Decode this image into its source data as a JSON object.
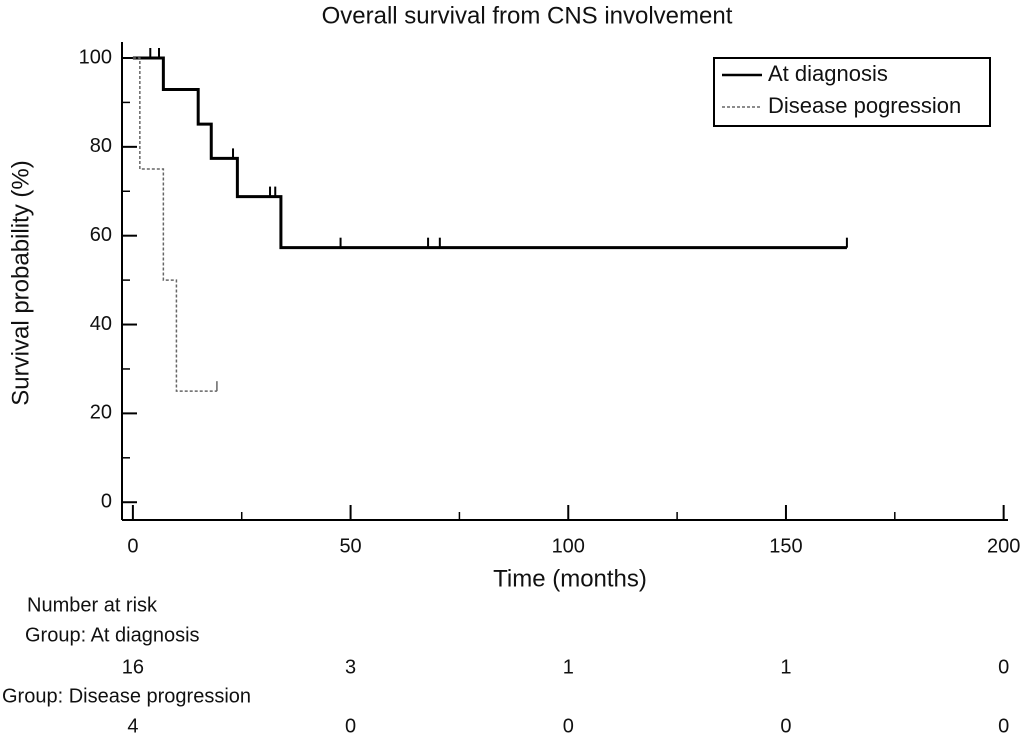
{
  "chart_data": {
    "type": "km",
    "title": "Overall survival from CNS involvement",
    "xlabel": "Time (months)",
    "ylabel": "Survival probability (%)",
    "xlim": [
      -2.5,
      201
    ],
    "ylim": [
      -4,
      103.6
    ],
    "xticks": [
      0,
      50,
      100,
      150,
      200
    ],
    "xminorticks": [
      25,
      75,
      125,
      175
    ],
    "yticks": [
      0,
      20,
      40,
      60,
      80,
      100
    ],
    "yminorticks": [
      10,
      30,
      50,
      70,
      90
    ],
    "legend": "top-right",
    "series": [
      {
        "name": "At diagnosis",
        "color": "#000000",
        "dashed": false,
        "x": [
          0,
          7,
          15,
          18,
          24,
          34
        ],
        "values": [
          100,
          92.9,
          85.1,
          77.4,
          68.8,
          57.3
        ],
        "censored": [
          4,
          6,
          23,
          31.5,
          32.7,
          47.7,
          67.8,
          70.5,
          164
        ]
      },
      {
        "name": "Disease pogression",
        "color": "#666666",
        "dashed": true,
        "x": [
          0,
          1.6,
          7,
          10
        ],
        "values": [
          100,
          75,
          50,
          25
        ],
        "censored": [
          19.3
        ]
      }
    ],
    "risk_table": {
      "title": "Number at risk",
      "groups": [
        {
          "label": "Group: At diagnosis",
          "counts": [
            16,
            3,
            1,
            1,
            0
          ]
        },
        {
          "label": "Group: Disease progression",
          "counts": [
            4,
            0,
            0,
            0,
            0
          ]
        }
      ]
    }
  }
}
